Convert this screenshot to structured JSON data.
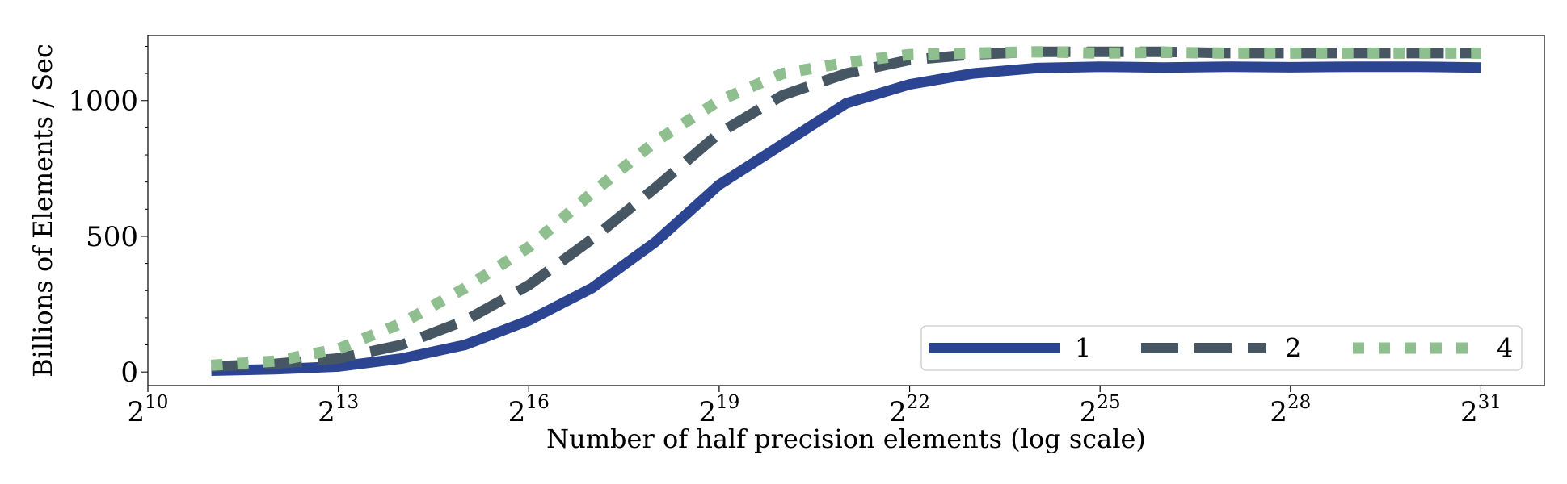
{
  "chart_data": {
    "type": "line",
    "xlabel": "Number of half precision elements (log scale)",
    "ylabel": "Billions of Elements / Sec",
    "x_scale": "log2",
    "xlim": [
      10,
      32
    ],
    "ylim": [
      -50,
      1240
    ],
    "x_ticks": [
      {
        "base": "2",
        "exp": "10",
        "value": 10
      },
      {
        "base": "2",
        "exp": "13",
        "value": 13
      },
      {
        "base": "2",
        "exp": "16",
        "value": 16
      },
      {
        "base": "2",
        "exp": "19",
        "value": 19
      },
      {
        "base": "2",
        "exp": "22",
        "value": 22
      },
      {
        "base": "2",
        "exp": "25",
        "value": 25
      },
      {
        "base": "2",
        "exp": "28",
        "value": 28
      },
      {
        "base": "2",
        "exp": "31",
        "value": 31
      }
    ],
    "y_ticks": [
      {
        "label": "0",
        "value": 0
      },
      {
        "label": "500",
        "value": 500
      },
      {
        "label": "1000",
        "value": 1000
      }
    ],
    "y_minor_step": 100,
    "x": [
      11,
      12,
      13,
      14,
      15,
      16,
      17,
      18,
      19,
      20,
      21,
      22,
      23,
      24,
      25,
      26,
      27,
      28,
      29,
      30,
      31
    ],
    "series": [
      {
        "name": "1",
        "color": "#2c4593",
        "dash": "solid",
        "values": [
          5,
          10,
          20,
          50,
          100,
          190,
          310,
          480,
          690,
          840,
          990,
          1060,
          1100,
          1120,
          1125,
          1122,
          1125,
          1123,
          1125,
          1125,
          1122
        ]
      },
      {
        "name": "2",
        "color": "#465663",
        "dash": "dashed",
        "values": [
          20,
          30,
          50,
          100,
          190,
          320,
          490,
          680,
          880,
          1020,
          1100,
          1150,
          1170,
          1180,
          1180,
          1180,
          1175,
          1175,
          1175,
          1175,
          1175
        ]
      },
      {
        "name": "4",
        "color": "#8fbf8f",
        "dash": "dotted",
        "values": [
          25,
          40,
          85,
          180,
          310,
          460,
          660,
          850,
          1000,
          1100,
          1140,
          1170,
          1175,
          1180,
          1175,
          1178,
          1175,
          1175,
          1175,
          1175,
          1175
        ]
      }
    ],
    "legend": {
      "placement": "lower-right",
      "columns": 3
    },
    "grid": false
  }
}
